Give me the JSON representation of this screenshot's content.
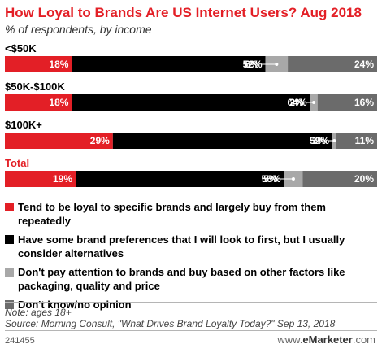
{
  "title": "How Loyal to Brands Are US Internet Users? Aug 2018",
  "subtitle": "% of respondents, by income",
  "chart_data": {
    "type": "bar",
    "orientation": "horizontal",
    "stacked": true,
    "categories": [
      "<$50K",
      "$50K-$100K",
      "$100K+",
      "Total"
    ],
    "series": [
      {
        "name": "Tend to be loyal to specific brands and largely buy from them repeatedly",
        "values": [
          18,
          18,
          29,
          19
        ],
        "labels": [
          "18%",
          "18%",
          "29%",
          "19%"
        ]
      },
      {
        "name": "Have some brand preferences that I will look to first, but I usually consider alternatives",
        "values": [
          52,
          64,
          59,
          56
        ],
        "labels": [
          "52%",
          "64%",
          "59%",
          "56%"
        ]
      },
      {
        "name": "Don't pay attention to brands and buy based on other factors like packaging, quality and price",
        "values": [
          6,
          2,
          1,
          5
        ],
        "labels": [
          "6%",
          "2%",
          "1%",
          "5%"
        ]
      },
      {
        "name": "Don't know/no opinion",
        "values": [
          24,
          16,
          11,
          20
        ],
        "labels": [
          "24%",
          "16%",
          "11%",
          "20%"
        ]
      }
    ],
    "colors": [
      "#e31f26",
      "#000000",
      "#a8a8a8",
      "#6b6b6b"
    ],
    "xlim": [
      0,
      100
    ],
    "grid": false,
    "legend_position": "bottom"
  },
  "footer": {
    "note": "Note: ages 18+",
    "source": "Source: Morning Consult, \"What Drives Brand Loyalty Today?\" Sep 13, 2018",
    "id": "241455",
    "brand_prefix": "www.",
    "brand_name": "eMarketer",
    "brand_suffix": ".com"
  }
}
